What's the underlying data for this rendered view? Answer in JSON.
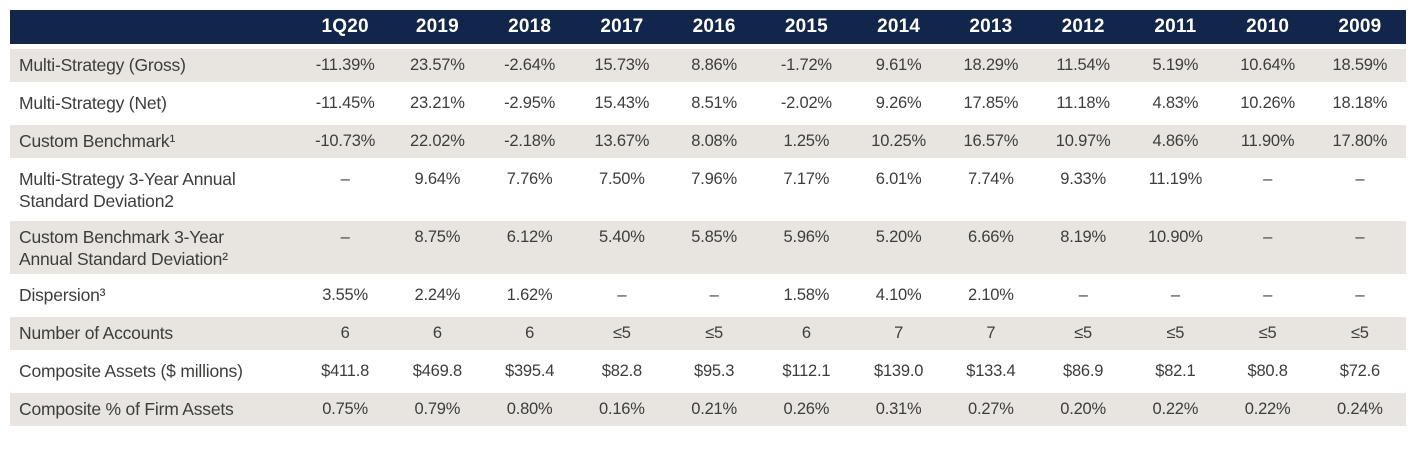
{
  "colors": {
    "header_bg": "#12254a",
    "header_text": "#ffffff",
    "stripe_bg": "#e8e5e0",
    "text": "#3d3d3c"
  },
  "table": {
    "columns": [
      "1Q20",
      "2019",
      "2018",
      "2017",
      "2016",
      "2015",
      "2014",
      "2013",
      "2012",
      "2011",
      "2010",
      "2009"
    ],
    "rows": [
      {
        "label": "Multi-Strategy (Gross)",
        "values": [
          "-11.39%",
          "23.57%",
          "-2.64%",
          "15.73%",
          "8.86%",
          "-1.72%",
          "9.61%",
          "18.29%",
          "11.54%",
          "5.19%",
          "10.64%",
          "18.59%"
        ]
      },
      {
        "label": "Multi-Strategy (Net)",
        "values": [
          "-11.45%",
          "23.21%",
          "-2.95%",
          "15.43%",
          "8.51%",
          "-2.02%",
          "9.26%",
          "17.85%",
          "11.18%",
          "4.83%",
          "10.26%",
          "18.18%"
        ]
      },
      {
        "label": "Custom Benchmark¹",
        "values": [
          "-10.73%",
          "22.02%",
          "-2.18%",
          "13.67%",
          "8.08%",
          "1.25%",
          "10.25%",
          "16.57%",
          "10.97%",
          "4.86%",
          "11.90%",
          "17.80%"
        ]
      },
      {
        "label": "Multi-Strategy 3-Year Annual\nStandard Deviation2",
        "values": [
          "–",
          "9.64%",
          "7.76%",
          "7.50%",
          "7.96%",
          "7.17%",
          "6.01%",
          "7.74%",
          "9.33%",
          "11.19%",
          "–",
          "–"
        ]
      },
      {
        "label": "Custom Benchmark 3-Year\nAnnual Standard Deviation²",
        "values": [
          "–",
          "8.75%",
          "6.12%",
          "5.40%",
          "5.85%",
          "5.96%",
          "5.20%",
          "6.66%",
          "8.19%",
          "10.90%",
          "–",
          "–"
        ]
      },
      {
        "label": "Dispersion³",
        "values": [
          "3.55%",
          "2.24%",
          "1.62%",
          "–",
          "–",
          "1.58%",
          "4.10%",
          "2.10%",
          "–",
          "–",
          "–",
          "–"
        ]
      },
      {
        "label": "Number of Accounts",
        "values": [
          "6",
          "6",
          "6",
          "≤5",
          "≤5",
          "6",
          "7",
          "7",
          "≤5",
          "≤5",
          "≤5",
          "≤5"
        ]
      },
      {
        "label": "Composite Assets ($ millions)",
        "values": [
          "$411.8",
          "$469.8",
          "$395.4",
          "$82.8",
          "$95.3",
          "$112.1",
          "$139.0",
          "$133.4",
          "$86.9",
          "$82.1",
          "$80.8",
          "$72.6"
        ]
      },
      {
        "label": "Composite % of Firm Assets",
        "values": [
          "0.75%",
          "0.79%",
          "0.80%",
          "0.16%",
          "0.21%",
          "0.26%",
          "0.31%",
          "0.27%",
          "0.20%",
          "0.22%",
          "0.22%",
          "0.24%"
        ]
      }
    ]
  }
}
